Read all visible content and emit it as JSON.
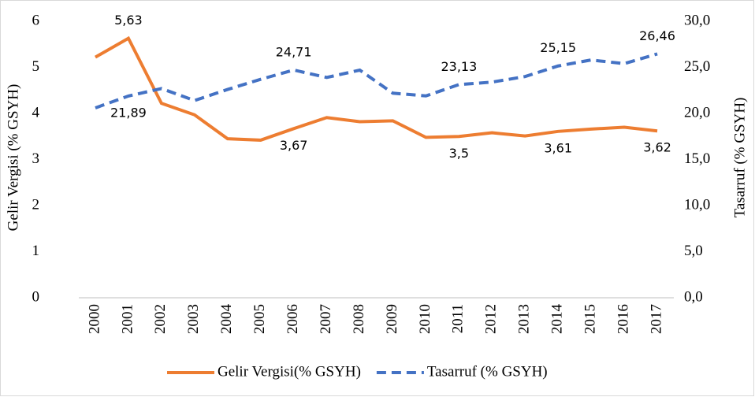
{
  "chart_data": {
    "type": "line",
    "categories": [
      "2000",
      "2001",
      "2002",
      "2003",
      "2004",
      "2005",
      "2006",
      "2007",
      "2008",
      "2009",
      "2010",
      "2011",
      "2012",
      "2013",
      "2014",
      "2015",
      "2016",
      "2017"
    ],
    "ylabel": "Gelir Vergisi (% GSYH)",
    "y2label": "Tasarruf (% GSYH)",
    "ylim": [
      0,
      6
    ],
    "yticks": [
      0,
      1,
      2,
      3,
      4,
      5,
      6
    ],
    "y2lim": [
      0,
      30
    ],
    "y2ticks": [
      {
        "value": 0,
        "label": "0,0"
      },
      {
        "value": 5,
        "label": "5,0"
      },
      {
        "value": 10,
        "label": "10,0"
      },
      {
        "value": 15,
        "label": "15,0"
      },
      {
        "value": 20,
        "label": "20,0"
      },
      {
        "value": 25,
        "label": "25,0"
      },
      {
        "value": 30,
        "label": "30,0"
      }
    ],
    "legend": "bottom",
    "series": [
      {
        "name": "Gelir Vergisi(% GSYH)",
        "color": "#ed7d31",
        "dash": "solid",
        "axis": "y",
        "values": [
          5.22,
          5.63,
          4.22,
          3.97,
          3.45,
          3.42,
          3.67,
          3.91,
          3.82,
          3.84,
          3.48,
          3.5,
          3.58,
          3.51,
          3.61,
          3.66,
          3.7,
          3.62
        ],
        "value_labels": [
          null,
          "5,63",
          null,
          null,
          null,
          null,
          "3,67",
          null,
          null,
          null,
          null,
          "3,5",
          null,
          null,
          "3,61",
          null,
          null,
          "3,62"
        ]
      },
      {
        "name": "Tasarruf (% GSYH)",
        "color": "#4472c4",
        "dash": "dashed",
        "axis": "y2",
        "values": [
          20.6,
          21.89,
          22.7,
          21.4,
          22.6,
          23.7,
          24.71,
          23.9,
          24.7,
          22.2,
          21.9,
          23.13,
          23.4,
          24.0,
          25.15,
          25.8,
          25.4,
          26.46
        ],
        "value_labels": [
          null,
          "21,89",
          null,
          null,
          null,
          null,
          "24,71",
          null,
          null,
          null,
          null,
          "23,13",
          null,
          null,
          "25,15",
          null,
          null,
          "26,46"
        ]
      }
    ]
  }
}
